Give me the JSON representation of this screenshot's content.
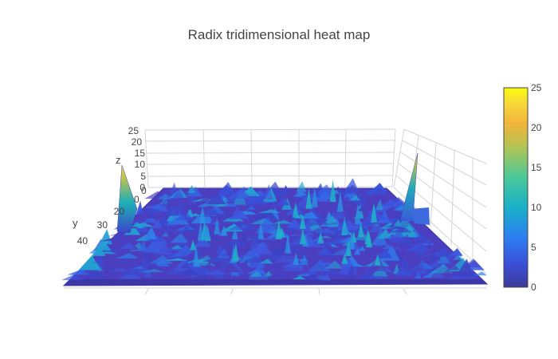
{
  "chart_data": {
    "type": "surface",
    "title": "Radix tridimensional heat map",
    "axis_titles": {
      "x": "",
      "y": "y",
      "z": "z"
    },
    "z_ticks": [
      "0",
      "5",
      "10",
      "15",
      "20",
      "25"
    ],
    "y_ticks": [
      "20",
      "30",
      "40"
    ],
    "x_ticks": [
      "0",
      "0"
    ],
    "zlim": [
      0,
      25
    ],
    "ylim": [
      0,
      50
    ],
    "xlim": [
      0,
      50
    ],
    "grid": true,
    "colorbar": {
      "ticks": [
        "0",
        "5",
        "10",
        "15",
        "20",
        "25"
      ],
      "range": [
        0,
        25
      ],
      "colors": [
        "#3d3a9a",
        "#3a50d8",
        "#2c7ff0",
        "#19b0c7",
        "#49c89a",
        "#b1c455",
        "#f2b43a",
        "#f8d83a",
        "#f9fb0e"
      ]
    },
    "description_values": {
      "baseline_level": 2,
      "noise_peak_level": 8,
      "spike_left_z": 25,
      "spike_right_z": 24
    }
  }
}
